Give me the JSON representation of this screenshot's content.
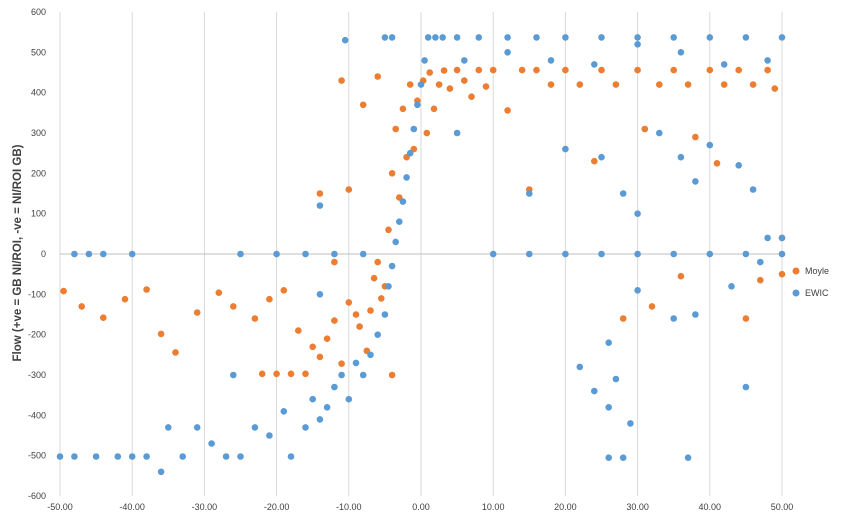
{
  "chart_data": {
    "type": "scatter",
    "title": "",
    "xlabel": "",
    "ylabel": "Flow (+ve = GB NI/ROI, -ve = NI/ROI GB)",
    "xlim": [
      -50,
      50
    ],
    "ylim": [
      -600,
      600
    ],
    "x_ticks": [
      "-50.00",
      "-40.00",
      "-30.00",
      "-20.00",
      "-10.00",
      "0.00",
      "10.00",
      "20.00",
      "30.00",
      "40.00",
      "50.00"
    ],
    "y_ticks": [
      "-600",
      "-500",
      "-400",
      "-300",
      "-200",
      "-100",
      "0",
      "100",
      "200",
      "300",
      "400",
      "500",
      "600"
    ],
    "grid": "vertical",
    "legend_position": "right",
    "series": [
      {
        "name": "Moyle",
        "color": "#ED7D31",
        "points": [
          [
            -49.5,
            -92
          ],
          [
            -47,
            -130
          ],
          [
            -44,
            -158
          ],
          [
            -41,
            -112
          ],
          [
            -38,
            -88
          ],
          [
            -36,
            -198
          ],
          [
            -34,
            -244
          ],
          [
            -31,
            -145
          ],
          [
            -28,
            -96
          ],
          [
            -26,
            -130
          ],
          [
            -23,
            -160
          ],
          [
            -21,
            -112
          ],
          [
            -19,
            -90
          ],
          [
            -17,
            -190
          ],
          [
            -15,
            -230
          ],
          [
            -14,
            -255
          ],
          [
            -13,
            -210
          ],
          [
            -12,
            -165
          ],
          [
            -11,
            -272
          ],
          [
            -10,
            -120
          ],
          [
            -9,
            -150
          ],
          [
            -8.5,
            -180
          ],
          [
            -7.5,
            -240
          ],
          [
            -7,
            -140
          ],
          [
            -6.5,
            -60
          ],
          [
            -6,
            -20
          ],
          [
            -5.5,
            -110
          ],
          [
            -5,
            -80
          ],
          [
            -4.5,
            60
          ],
          [
            -4,
            200
          ],
          [
            -3.5,
            310
          ],
          [
            -3,
            140
          ],
          [
            -2.5,
            360
          ],
          [
            -2,
            240
          ],
          [
            -1.5,
            420
          ],
          [
            -1,
            260
          ],
          [
            -0.5,
            380
          ],
          [
            0.3,
            430
          ],
          [
            0.8,
            300
          ],
          [
            1.2,
            450
          ],
          [
            1.8,
            360
          ],
          [
            2.5,
            420
          ],
          [
            3.2,
            455
          ],
          [
            4,
            410
          ],
          [
            5,
            456
          ],
          [
            6,
            430
          ],
          [
            7,
            390
          ],
          [
            8,
            456
          ],
          [
            9,
            415
          ],
          [
            10,
            456
          ],
          [
            12,
            356
          ],
          [
            14,
            456
          ],
          [
            15,
            160
          ],
          [
            16,
            456
          ],
          [
            18,
            420
          ],
          [
            20,
            456
          ],
          [
            22,
            420
          ],
          [
            24,
            230
          ],
          [
            25,
            456
          ],
          [
            27,
            420
          ],
          [
            28,
            -160
          ],
          [
            30,
            456
          ],
          [
            31,
            310
          ],
          [
            32,
            -130
          ],
          [
            33,
            420
          ],
          [
            35,
            456
          ],
          [
            36,
            -55
          ],
          [
            37,
            420
          ],
          [
            38,
            290
          ],
          [
            40,
            456
          ],
          [
            41,
            225
          ],
          [
            42,
            420
          ],
          [
            44,
            456
          ],
          [
            45,
            -160
          ],
          [
            46,
            420
          ],
          [
            47,
            -65
          ],
          [
            48,
            456
          ],
          [
            49,
            410
          ],
          [
            50,
            40
          ],
          [
            50,
            -50
          ],
          [
            -16,
            -297
          ],
          [
            -20,
            -297
          ],
          [
            -22,
            -297
          ],
          [
            -18,
            -297
          ],
          [
            -10,
            160
          ],
          [
            -14,
            150
          ],
          [
            -11,
            430
          ],
          [
            -8,
            370
          ],
          [
            -6,
            440
          ],
          [
            -12,
            -20
          ],
          [
            -4,
            -300
          ]
        ]
      },
      {
        "name": "EWIC",
        "color": "#5B9BD5",
        "points": [
          [
            -50,
            -502
          ],
          [
            -48,
            -502
          ],
          [
            -45,
            -502
          ],
          [
            -42,
            -502
          ],
          [
            -40,
            -502
          ],
          [
            -38,
            -502
          ],
          [
            -36,
            -540
          ],
          [
            -35,
            -430
          ],
          [
            -33,
            -502
          ],
          [
            -31,
            -430
          ],
          [
            -29,
            -470
          ],
          [
            -27,
            -502
          ],
          [
            -25,
            -502
          ],
          [
            -23,
            -430
          ],
          [
            -21,
            -450
          ],
          [
            -19,
            -390
          ],
          [
            -18,
            -502
          ],
          [
            -16,
            -430
          ],
          [
            -15,
            -360
          ],
          [
            -14,
            -410
          ],
          [
            -13,
            -380
          ],
          [
            -12,
            -330
          ],
          [
            -11,
            -300
          ],
          [
            -10,
            -360
          ],
          [
            -9,
            -270
          ],
          [
            -8,
            -300
          ],
          [
            -7,
            -250
          ],
          [
            -6,
            -200
          ],
          [
            -5,
            -150
          ],
          [
            -4.5,
            -80
          ],
          [
            -4,
            -30
          ],
          [
            -3.5,
            30
          ],
          [
            -3,
            80
          ],
          [
            -2.5,
            130
          ],
          [
            -2,
            190
          ],
          [
            -1.5,
            250
          ],
          [
            -1,
            310
          ],
          [
            -0.5,
            370
          ],
          [
            0,
            420
          ],
          [
            0.5,
            480
          ],
          [
            1,
            537
          ],
          [
            2,
            537
          ],
          [
            3,
            537
          ],
          [
            5,
            537
          ],
          [
            8,
            537
          ],
          [
            12,
            537
          ],
          [
            16,
            537
          ],
          [
            20,
            537
          ],
          [
            25,
            537
          ],
          [
            30,
            537
          ],
          [
            35,
            537
          ],
          [
            40,
            537
          ],
          [
            45,
            537
          ],
          [
            50,
            537
          ],
          [
            6,
            480
          ],
          [
            12,
            500
          ],
          [
            18,
            480
          ],
          [
            24,
            470
          ],
          [
            30,
            520
          ],
          [
            36,
            500
          ],
          [
            42,
            470
          ],
          [
            48,
            480
          ],
          [
            -48,
            0
          ],
          [
            -44,
            0
          ],
          [
            -40,
            0
          ],
          [
            -46,
            0
          ],
          [
            -25,
            0
          ],
          [
            -20,
            0
          ],
          [
            -16,
            0
          ],
          [
            -12,
            0
          ],
          [
            -8,
            0
          ],
          [
            10,
            0
          ],
          [
            15,
            0
          ],
          [
            20,
            0
          ],
          [
            25,
            0
          ],
          [
            30,
            0
          ],
          [
            35,
            0
          ],
          [
            40,
            0
          ],
          [
            45,
            0
          ],
          [
            50,
            0
          ],
          [
            -10.5,
            530
          ],
          [
            -4,
            537
          ],
          [
            -5,
            537
          ],
          [
            -26,
            -300
          ],
          [
            -14,
            -100
          ],
          [
            -14,
            120
          ],
          [
            5,
            300
          ],
          [
            15,
            150
          ],
          [
            20,
            260
          ],
          [
            25,
            240
          ],
          [
            28,
            150
          ],
          [
            30,
            100
          ],
          [
            33,
            300
          ],
          [
            36,
            240
          ],
          [
            38,
            180
          ],
          [
            40,
            270
          ],
          [
            44,
            220
          ],
          [
            45,
            -330
          ],
          [
            46,
            160
          ],
          [
            48,
            40
          ],
          [
            50,
            40
          ],
          [
            26,
            -505
          ],
          [
            28,
            -505
          ],
          [
            37,
            -505
          ],
          [
            26,
            -220
          ],
          [
            26,
            -380
          ],
          [
            27,
            -310
          ],
          [
            24,
            -340
          ],
          [
            22,
            -280
          ],
          [
            29,
            -420
          ],
          [
            35,
            -160
          ],
          [
            43,
            -80
          ],
          [
            47,
            -20
          ],
          [
            30,
            -90
          ],
          [
            38,
            -150
          ]
        ]
      }
    ]
  }
}
